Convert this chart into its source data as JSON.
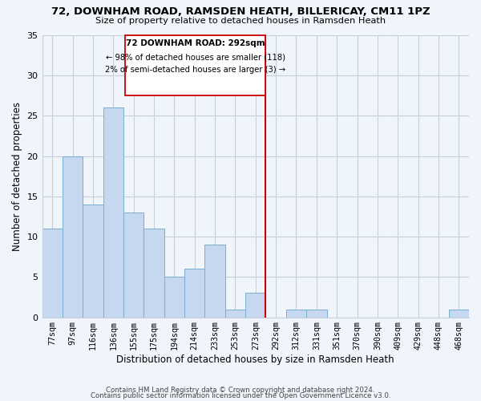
{
  "title1": "72, DOWNHAM ROAD, RAMSDEN HEATH, BILLERICAY, CM11 1PZ",
  "title2": "Size of property relative to detached houses in Ramsden Heath",
  "xlabel": "Distribution of detached houses by size in Ramsden Heath",
  "ylabel": "Number of detached properties",
  "bar_labels": [
    "77sqm",
    "97sqm",
    "116sqm",
    "136sqm",
    "155sqm",
    "175sqm",
    "194sqm",
    "214sqm",
    "233sqm",
    "253sqm",
    "273sqm",
    "292sqm",
    "312sqm",
    "331sqm",
    "351sqm",
    "370sqm",
    "390sqm",
    "409sqm",
    "429sqm",
    "448sqm",
    "468sqm"
  ],
  "bar_values": [
    11,
    20,
    14,
    26,
    13,
    11,
    5,
    6,
    9,
    1,
    3,
    0,
    1,
    1,
    0,
    0,
    0,
    0,
    0,
    0,
    1
  ],
  "bar_color": "#c5d8ef",
  "bar_edge_color": "#7aadce",
  "vline_color": "#cc0000",
  "annotation_title": "72 DOWNHAM ROAD: 292sqm",
  "annotation_line1": "← 98% of detached houses are smaller (118)",
  "annotation_line2": "2% of semi-detached houses are larger (3) →",
  "ylim": [
    0,
    35
  ],
  "yticks": [
    0,
    5,
    10,
    15,
    20,
    25,
    30,
    35
  ],
  "footer1": "Contains HM Land Registry data © Crown copyright and database right 2024.",
  "footer2": "Contains public sector information licensed under the Open Government Licence v3.0.",
  "bg_color": "#f0f4fb",
  "grid_color": "#c8d0dc"
}
